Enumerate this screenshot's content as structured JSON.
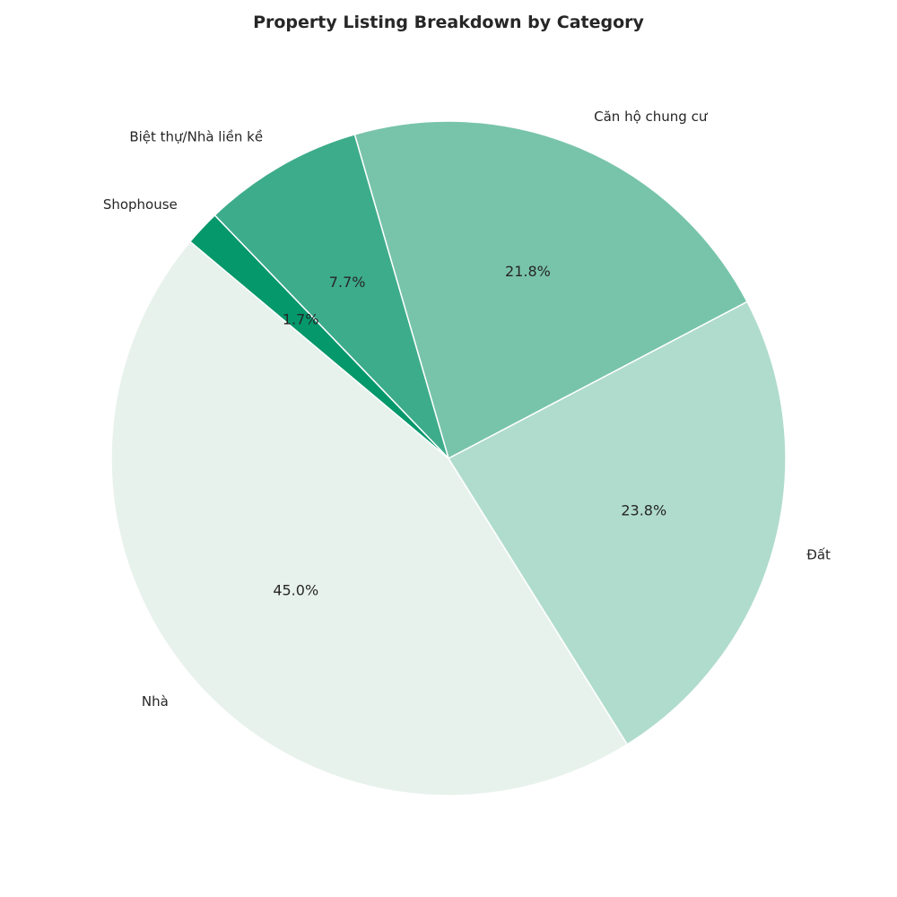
{
  "chart_data": {
    "type": "pie",
    "title": "Property Listing Breakdown by Category",
    "categories": [
      "Nhà",
      "Đất",
      "Căn hộ chung cư",
      "Biệt thự/Nhà liền kề",
      "Shophouse"
    ],
    "values": [
      45.0,
      23.8,
      21.8,
      7.7,
      1.7
    ],
    "value_labels": [
      "45.0%",
      "23.8%",
      "21.8%",
      "7.7%",
      "1.7%"
    ],
    "colors": [
      "#e8f2ed",
      "#b0dccd",
      "#78c4ab",
      "#3dac8a",
      "#05986a"
    ],
    "start_angle_deg": 140,
    "direction": "counterclockwise",
    "legend": "none"
  }
}
